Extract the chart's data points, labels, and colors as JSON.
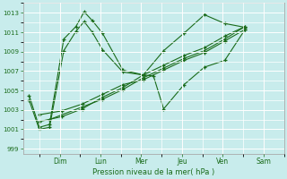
{
  "background_color": "#c8ecec",
  "grid_color": "#ffffff",
  "line_color": "#1a6b1a",
  "xlabel": "Pression niveau de la mer( hPa )",
  "ylim": [
    998.5,
    1014.0
  ],
  "yticks": [
    999,
    1001,
    1003,
    1005,
    1007,
    1009,
    1011,
    1013
  ],
  "day_labels": [
    "Dim",
    "Lun",
    "Mer",
    "Jeu",
    "Ven",
    "Sam"
  ],
  "day_positions": [
    1,
    2,
    3,
    4,
    5,
    6
  ],
  "xlim": [
    0.1,
    6.5
  ],
  "series": [
    {
      "x": [
        0.25,
        0.5,
        0.75,
        1.1,
        1.4,
        1.6,
        1.8,
        2.05,
        2.55,
        3.05,
        3.55,
        4.05,
        4.55,
        5.05,
        5.55
      ],
      "y": [
        1004.5,
        1001.2,
        1001.5,
        1010.3,
        1011.6,
        1013.1,
        1012.2,
        1010.9,
        1007.1,
        1006.6,
        1009.1,
        1010.9,
        1012.8,
        1011.9,
        1011.5
      ]
    },
    {
      "x": [
        0.25,
        0.5,
        0.75,
        1.1,
        1.4,
        1.6,
        1.8,
        2.05,
        2.55,
        3.05,
        3.3,
        3.55,
        4.05,
        4.55,
        5.05,
        5.55
      ],
      "y": [
        1004.0,
        1001.0,
        1001.2,
        1009.1,
        1011.1,
        1012.1,
        1011.0,
        1009.2,
        1006.9,
        1006.6,
        1006.5,
        1003.1,
        1005.6,
        1007.4,
        1008.1,
        1011.3
      ]
    },
    {
      "x": [
        0.5,
        1.05,
        1.55,
        2.05,
        2.55,
        3.05,
        3.55,
        4.05,
        4.55,
        5.05,
        5.55
      ],
      "y": [
        1002.5,
        1002.9,
        1003.6,
        1004.6,
        1005.6,
        1006.1,
        1007.1,
        1008.1,
        1008.9,
        1010.1,
        1011.3
      ]
    },
    {
      "x": [
        0.5,
        1.05,
        1.55,
        2.05,
        2.55,
        3.05,
        3.55,
        4.05,
        4.55,
        5.05,
        5.55
      ],
      "y": [
        1001.8,
        1002.3,
        1003.1,
        1004.3,
        1005.3,
        1006.6,
        1007.6,
        1008.6,
        1009.4,
        1010.6,
        1011.6
      ]
    },
    {
      "x": [
        0.75,
        1.55,
        2.05,
        2.55,
        3.05,
        3.55,
        4.05,
        4.55,
        5.05,
        5.55
      ],
      "y": [
        1002.0,
        1003.3,
        1004.1,
        1005.1,
        1006.3,
        1007.3,
        1008.3,
        1009.1,
        1010.3,
        1011.6
      ]
    }
  ]
}
